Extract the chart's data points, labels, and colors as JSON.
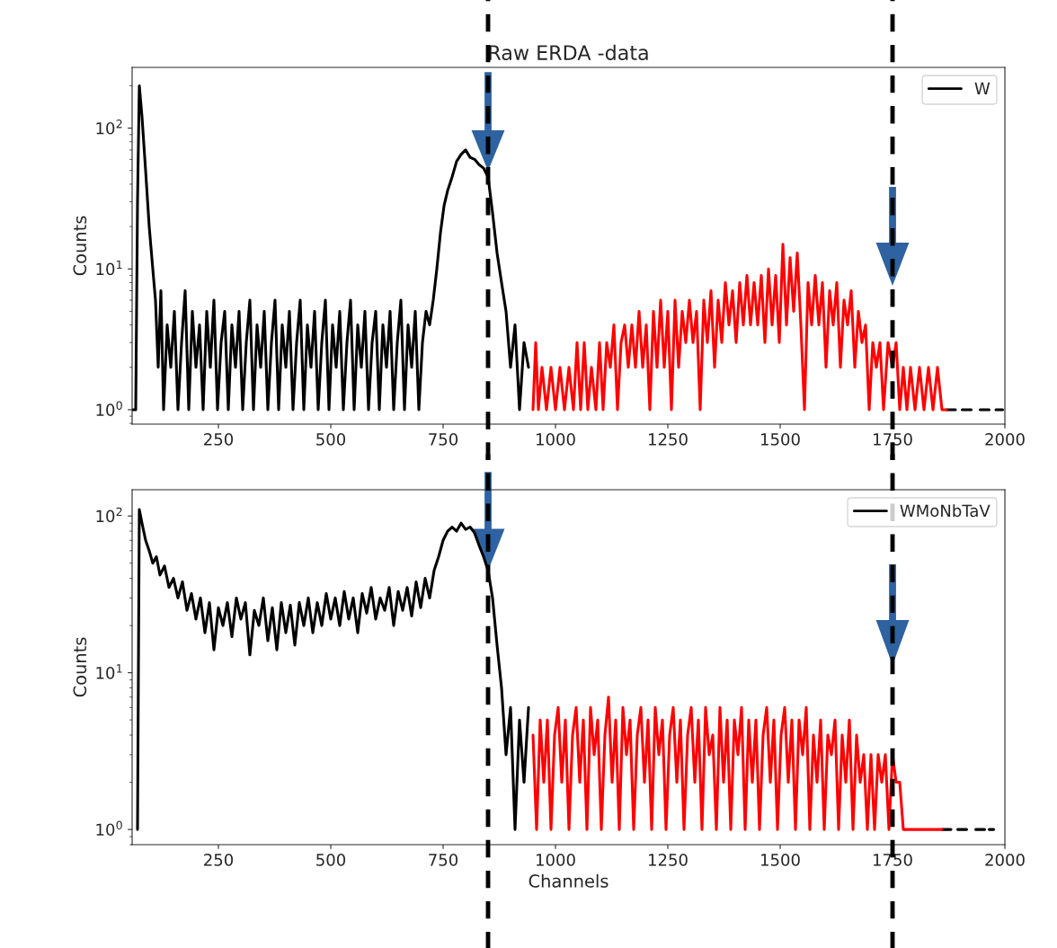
{
  "chart_data": [
    {
      "type": "line",
      "title": "Raw ERDA -data",
      "ylabel": "Counts",
      "log": true,
      "legend": "top right",
      "xlim": [
        58,
        2000
      ],
      "xticks": [
        250,
        500,
        750,
        1000,
        1250,
        1500,
        1750,
        2000
      ],
      "ylim": [
        0.79,
        270
      ],
      "yticks": [
        {
          "value": 1,
          "label": "10$^{0}$"
        },
        {
          "value": 10,
          "label": "10$^{1}$"
        },
        {
          "value": 100,
          "label": "10$^{2}$"
        }
      ],
      "ref_lines": [
        {
          "axis": "x",
          "value": 850,
          "color": "#000000",
          "line_style": "dashed"
        },
        {
          "axis": "x",
          "value": 1750,
          "color": "#000000",
          "line_style": "dashed"
        }
      ],
      "series": [
        {
          "name": "W",
          "color": "#000000",
          "x": [
            58,
            66,
            70,
            74,
            80,
            88,
            96,
            104,
            110,
            116,
            122,
            128,
            136,
            144,
            152,
            160,
            168,
            176,
            184,
            192,
            200,
            208,
            216,
            224,
            232,
            240,
            248,
            256,
            264,
            272,
            280,
            288,
            296,
            304,
            312,
            320,
            328,
            336,
            344,
            352,
            360,
            368,
            376,
            384,
            392,
            400,
            408,
            416,
            424,
            432,
            440,
            448,
            456,
            464,
            472,
            480,
            488,
            496,
            504,
            512,
            520,
            528,
            536,
            544,
            552,
            560,
            568,
            576,
            584,
            592,
            600,
            608,
            616,
            624,
            632,
            640,
            648,
            656,
            664,
            672,
            680,
            688,
            696,
            704,
            712,
            720,
            728,
            736,
            744,
            752,
            760,
            770,
            780,
            790,
            800,
            810,
            820,
            830,
            840,
            850,
            860,
            870,
            880,
            890,
            900,
            910,
            920,
            930,
            940,
            950,
            1870,
            1890,
            1898,
            1905,
            1925,
            1935,
            1945,
            1965,
            1972,
            1980,
            1995
          ],
          "values": [
            1,
            1,
            30,
            200,
            120,
            50,
            20,
            10,
            6,
            2,
            7,
            1,
            4,
            2,
            5,
            1,
            3,
            7,
            1,
            5,
            2,
            4,
            1,
            5,
            2,
            6,
            1,
            3,
            5,
            1,
            4,
            2,
            5,
            1,
            3,
            6,
            1,
            4,
            2,
            5,
            1,
            3,
            6,
            1,
            4,
            2,
            5,
            1,
            3,
            6,
            1,
            4,
            2,
            5,
            1,
            3,
            6,
            1,
            4,
            2,
            5,
            1,
            3,
            6,
            1,
            4,
            2,
            5,
            1,
            3,
            5,
            1,
            4,
            2,
            5,
            1,
            3,
            6,
            1,
            4,
            2,
            5,
            1,
            3,
            5,
            4,
            6,
            10,
            18,
            28,
            36,
            45,
            58,
            65,
            70,
            62,
            60,
            55,
            52,
            45,
            25,
            13,
            8,
            5,
            2,
            4,
            1,
            3,
            2,
            null,
            1,
            1,
            null,
            1,
            1,
            null,
            1,
            1,
            null,
            1,
            1
          ]
        },
        {
          "color": "#ff0000",
          "x": [
            950,
            956,
            962,
            970,
            980,
            990,
            1000,
            1010,
            1020,
            1030,
            1040,
            1048,
            1056,
            1064,
            1072,
            1080,
            1090,
            1098,
            1106,
            1114,
            1122,
            1130,
            1138,
            1146,
            1154,
            1162,
            1170,
            1178,
            1186,
            1194,
            1202,
            1210,
            1218,
            1226,
            1234,
            1242,
            1250,
            1258,
            1266,
            1274,
            1282,
            1290,
            1298,
            1306,
            1314,
            1322,
            1330,
            1338,
            1346,
            1354,
            1362,
            1370,
            1378,
            1386,
            1394,
            1402,
            1410,
            1418,
            1426,
            1434,
            1442,
            1450,
            1458,
            1466,
            1474,
            1482,
            1490,
            1498,
            1506,
            1514,
            1522,
            1530,
            1538,
            1546,
            1554,
            1562,
            1570,
            1578,
            1586,
            1594,
            1602,
            1610,
            1618,
            1626,
            1634,
            1642,
            1650,
            1658,
            1666,
            1674,
            1682,
            1690,
            1698,
            1706,
            1714,
            1722,
            1730,
            1740,
            1750,
            1758,
            1766,
            1774,
            1782,
            1790,
            1800,
            1810,
            1820,
            1830,
            1840,
            1850,
            1860,
            1870
          ],
          "values": [
            1,
            3,
            1,
            2,
            1,
            2,
            1,
            2,
            1,
            2,
            1,
            3,
            1,
            3,
            1,
            2,
            1,
            3,
            1,
            3,
            2,
            4,
            1,
            3,
            4,
            2,
            4,
            2,
            5,
            2,
            4,
            1,
            5,
            2,
            6,
            2,
            5,
            1,
            6,
            2,
            5,
            3,
            6,
            3,
            5,
            1,
            6,
            3,
            7,
            2,
            6,
            3,
            8,
            4,
            7,
            3,
            8,
            4,
            9,
            4,
            8,
            4,
            9,
            3,
            10,
            4,
            9,
            3,
            15,
            4,
            12,
            5,
            13,
            4,
            1,
            8,
            4,
            9,
            4,
            8,
            2,
            7,
            4,
            8,
            2,
            6,
            4,
            7,
            2,
            5,
            3,
            4,
            1,
            3,
            2,
            3,
            1,
            3,
            2,
            3,
            1,
            2,
            1,
            2,
            1,
            2,
            1,
            2,
            1,
            2,
            1,
            1
          ]
        }
      ]
    },
    {
      "type": "line",
      "xlabel": "Channels",
      "ylabel": "Counts",
      "log": true,
      "legend": "top right",
      "xlim": [
        58,
        2000
      ],
      "xticks": [
        250,
        500,
        750,
        1000,
        1250,
        1500,
        1750,
        2000
      ],
      "ylim": [
        0.8,
        147
      ],
      "yticks": [
        {
          "value": 1,
          "label": "10$^{0}$"
        },
        {
          "value": 10,
          "label": "10$^{1}$"
        },
        {
          "value": 100,
          "label": "10$^{2}$"
        }
      ],
      "ref_lines": [
        {
          "axis": "x",
          "value": 850,
          "color": "#000000",
          "line_style": "dashed"
        },
        {
          "axis": "x",
          "value": 1750,
          "color": "#000000",
          "line_style": "dashed"
        }
      ],
      "series": [
        {
          "name": "WMoNbTaV",
          "color": "#000000",
          "x": [
            70,
            74,
            80,
            88,
            96,
            104,
            112,
            120,
            130,
            140,
            150,
            160,
            170,
            180,
            190,
            200,
            210,
            220,
            230,
            240,
            250,
            260,
            270,
            280,
            290,
            300,
            310,
            320,
            330,
            340,
            350,
            360,
            370,
            380,
            390,
            400,
            410,
            420,
            430,
            440,
            450,
            460,
            470,
            480,
            490,
            500,
            510,
            520,
            530,
            540,
            550,
            560,
            570,
            580,
            590,
            600,
            610,
            620,
            630,
            640,
            650,
            660,
            670,
            680,
            690,
            700,
            710,
            720,
            730,
            740,
            750,
            760,
            770,
            780,
            790,
            800,
            810,
            820,
            830,
            840,
            850,
            860,
            870,
            880,
            890,
            900,
            910,
            920,
            930,
            940,
            950,
            1860,
            1880,
            1888,
            1895,
            1915,
            1925,
            1935,
            1955,
            1960,
            1965,
            1975
          ],
          "values": [
            1,
            110,
            90,
            70,
            60,
            50,
            55,
            42,
            48,
            35,
            40,
            30,
            38,
            25,
            32,
            22,
            30,
            18,
            28,
            14,
            26,
            20,
            28,
            17,
            30,
            22,
            28,
            13,
            25,
            20,
            30,
            16,
            26,
            14,
            28,
            18,
            27,
            15,
            28,
            20,
            30,
            18,
            28,
            20,
            32,
            22,
            30,
            20,
            33,
            22,
            30,
            18,
            32,
            24,
            35,
            22,
            30,
            25,
            35,
            20,
            33,
            25,
            35,
            23,
            38,
            26,
            40,
            30,
            45,
            55,
            70,
            80,
            85,
            80,
            90,
            82,
            85,
            78,
            65,
            55,
            45,
            30,
            15,
            8,
            3,
            6,
            1,
            5,
            2,
            6,
            null,
            1,
            1,
            null,
            1,
            1,
            null,
            1,
            1,
            null,
            1,
            1
          ]
        },
        {
          "color": "#ff0000",
          "x": [
            950,
            958,
            966,
            974,
            982,
            990,
            998,
            1006,
            1014,
            1022,
            1030,
            1038,
            1046,
            1054,
            1062,
            1070,
            1078,
            1086,
            1094,
            1102,
            1110,
            1118,
            1126,
            1134,
            1142,
            1150,
            1158,
            1166,
            1174,
            1182,
            1190,
            1198,
            1206,
            1214,
            1222,
            1230,
            1238,
            1246,
            1254,
            1262,
            1270,
            1278,
            1286,
            1294,
            1302,
            1310,
            1318,
            1326,
            1334,
            1342,
            1350,
            1358,
            1366,
            1374,
            1382,
            1390,
            1398,
            1406,
            1414,
            1422,
            1430,
            1438,
            1446,
            1454,
            1462,
            1470,
            1478,
            1486,
            1494,
            1502,
            1510,
            1518,
            1526,
            1534,
            1542,
            1550,
            1558,
            1566,
            1574,
            1582,
            1590,
            1598,
            1606,
            1614,
            1622,
            1630,
            1638,
            1646,
            1654,
            1662,
            1670,
            1678,
            1686,
            1694,
            1702,
            1710,
            1718,
            1726,
            1734,
            1742,
            1750,
            1758,
            1766,
            1774,
            1790,
            1800,
            1810,
            1820,
            1840,
            1860
          ],
          "values": [
            4,
            1,
            5,
            2,
            5,
            1,
            4,
            6,
            2,
            5,
            1,
            4,
            6,
            2,
            5,
            1,
            6,
            3,
            5,
            1,
            4,
            7,
            2,
            5,
            1,
            6,
            3,
            5,
            1,
            4,
            6,
            2,
            5,
            1,
            6,
            3,
            5,
            1,
            4,
            6,
            2,
            5,
            1,
            4,
            6,
            2,
            5,
            1,
            6,
            3,
            4,
            1,
            6,
            2,
            5,
            1,
            5,
            3,
            6,
            1,
            5,
            2,
            5,
            1,
            4,
            6,
            2,
            5,
            1,
            4,
            6,
            2,
            5,
            1,
            5,
            3,
            6,
            1,
            4,
            2,
            5,
            1,
            4,
            3,
            5,
            1,
            4,
            2,
            5,
            1,
            4,
            2,
            3,
            1,
            3,
            1,
            3,
            2,
            3,
            1,
            3,
            2,
            2,
            1,
            1,
            1,
            1,
            1,
            1,
            1
          ]
        }
      ]
    }
  ]
}
